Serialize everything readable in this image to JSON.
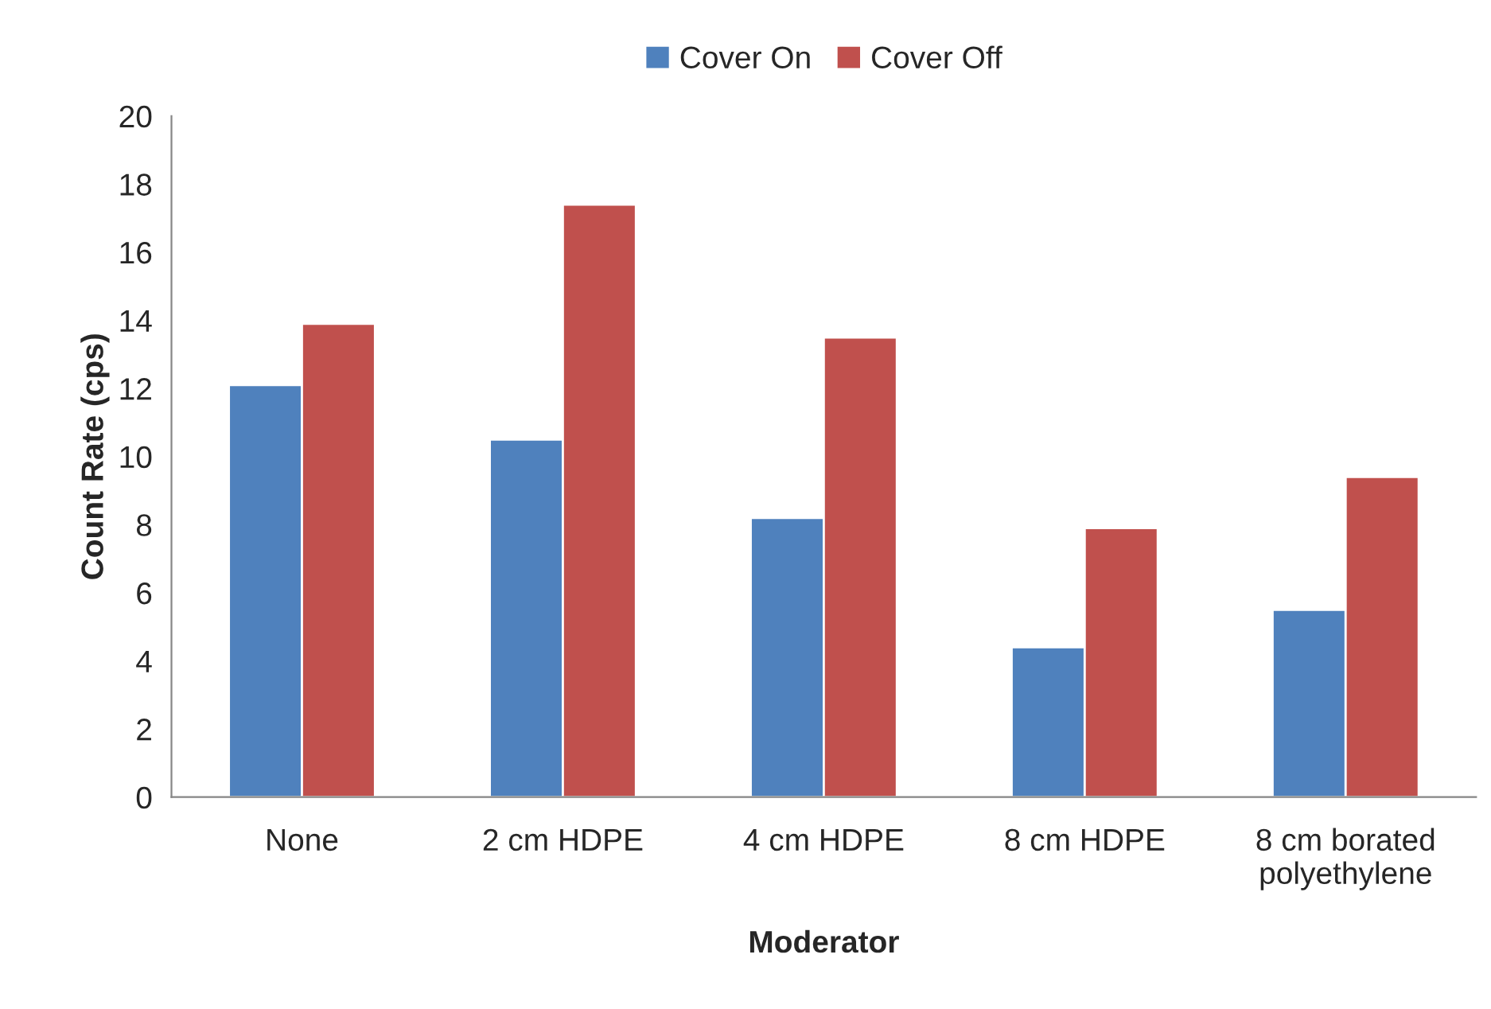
{
  "chart_data": {
    "type": "bar",
    "xlabel": "Moderator",
    "ylabel": "Count Rate (cps)",
    "categories": [
      "None",
      "2 cm HDPE",
      "4 cm HDPE",
      "8 cm HDPE",
      "8 cm borated\npolyethylene"
    ],
    "series": [
      {
        "name": "Cover On",
        "color": "#4f81bd",
        "values": [
          12.1,
          10.5,
          8.2,
          4.4,
          5.5
        ]
      },
      {
        "name": "Cover Off",
        "color": "#c0504d",
        "values": [
          13.9,
          17.4,
          13.5,
          7.9,
          9.4
        ]
      }
    ],
    "ylim": [
      0,
      20
    ],
    "yticks": [
      0,
      2,
      4,
      6,
      8,
      10,
      12,
      14,
      16,
      18,
      20
    ],
    "grid": false,
    "legend": "top"
  }
}
